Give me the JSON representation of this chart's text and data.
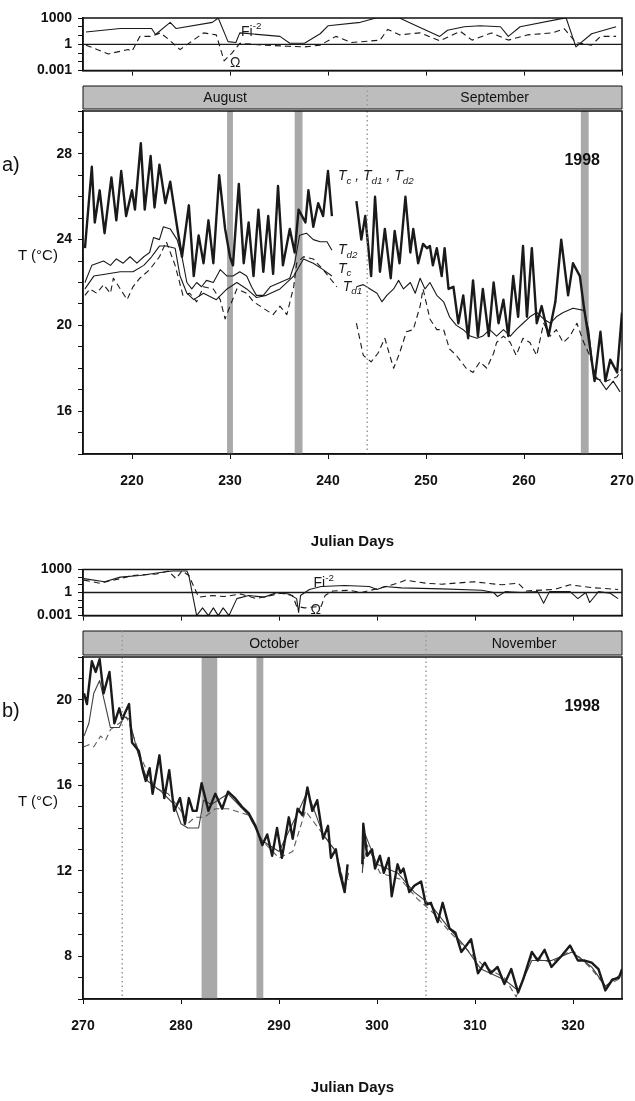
{
  "chart_data": [
    {
      "type": "line",
      "log": true,
      "xlim": [
        215,
        270
      ],
      "ylim": [
        0.001,
        1000
      ],
      "xticks": [
        220,
        230,
        240,
        250,
        260,
        270
      ],
      "yticks": [
        0.001,
        {
          "value": 0.01,
          "label": null
        },
        {
          "value": 0.1,
          "label": null
        },
        1,
        {
          "value": 10,
          "label": null
        },
        {
          "value": 100,
          "label": null
        },
        1000
      ],
      "tick_labels": "y",
      "ref_lines": [
        {
          "axis": "y",
          "value": 1,
          "color": "#1a1a1a"
        }
      ],
      "series": [
        {
          "name": "Fi$^{-2}$",
          "color": "#1a1a1a",
          "x": [
            215.3,
            218.8,
            222.0,
            222.4,
            223.9,
            224.5,
            228.2,
            228.8,
            229.8,
            230.6,
            231.0,
            235.1,
            236.1,
            237.6,
            239.2,
            240.0,
            243.3,
            244.9,
            247.3,
            249.0,
            251.4,
            252.2,
            253.9,
            255.5,
            257.6,
            258.4,
            259.6,
            263.7,
            264.3,
            265.3,
            266.9,
            269.4
          ],
          "values": [
            25,
            63,
            63,
            13,
            320,
            63,
            320,
            1000,
            2,
            1.6,
            20,
            8,
            1.3,
            1.3,
            16,
            130,
            320,
            1000,
            1000,
            130,
            8,
            40,
            100,
            130,
            100,
            8,
            100,
            800,
            1000,
            0.5,
            16,
            100
          ]
        },
        {
          "name": "Ω",
          "color": "#1a1a1a",
          "line_style": "dashed",
          "x": [
            215.3,
            217.6,
            219.6,
            220.0,
            220.8,
            222.0,
            222.9,
            223.7,
            224.9,
            227.3,
            228.6,
            229.4,
            230.2,
            231.0,
            233.5,
            235.9,
            237.6,
            239.2,
            240.8,
            242.4,
            245.3,
            246.1,
            247.3,
            249.4,
            251.4,
            253.5,
            254.7,
            256.7,
            258.4,
            260.4,
            262.9,
            264.1,
            265.3,
            266.9,
            267.8,
            269.4
          ],
          "values": [
            0.8,
            0.08,
            0.25,
            0.16,
            8,
            8,
            20,
            4,
            0.25,
            20,
            12,
            0.013,
            0.1,
            1.3,
            0.8,
            0.6,
            0.5,
            0.8,
            8,
            1.6,
            3,
            50,
            12,
            20,
            2.5,
            30,
            3,
            20,
            3,
            12,
            20,
            60,
            1.6,
            0.8,
            8,
            8
          ]
        }
      ]
    },
    {
      "type": "line",
      "title": "a)",
      "xlabel": "Julian Days",
      "ylabel": "T (°C)",
      "xlim": [
        215,
        270
      ],
      "ylim": [
        14,
        30
      ],
      "xticks": [
        220,
        230,
        240,
        250,
        260,
        270
      ],
      "yticks": [
        {
          "value": 14,
          "label": null
        },
        {
          "value": 15,
          "label": null
        },
        16,
        {
          "value": 17,
          "label": null
        },
        {
          "value": 18,
          "label": null
        },
        {
          "value": 19,
          "label": null
        },
        20,
        {
          "value": 21,
          "label": null
        },
        {
          "value": 22,
          "label": null
        },
        {
          "value": 23,
          "label": null
        },
        24,
        {
          "value": 25,
          "label": null
        },
        {
          "value": 26,
          "label": null
        },
        {
          "value": 27,
          "label": null
        },
        28,
        {
          "value": 29,
          "label": null
        },
        {
          "value": 30,
          "label": null
        }
      ],
      "annotations": [
        "1998",
        "August",
        "September"
      ],
      "ref_lines": [
        {
          "axis": "x",
          "value": 244,
          "color": "#8a8a8a",
          "line_style": "dotted"
        }
      ],
      "bands": [
        {
          "axis": "x",
          "from": 229.7,
          "to": 230.3,
          "color": "#a9a9a9"
        },
        {
          "axis": "x",
          "from": 236.6,
          "to": 237.4,
          "color": "#a9a9a9"
        },
        {
          "axis": "x",
          "from": 265.8,
          "to": 266.6,
          "color": "#a9a9a9"
        }
      ],
      "series": [
        {
          "name": "T$_{c}$ , T$_{d1}$ , T$_{d2}$",
          "color": "#1a1a1a",
          "x": [
            215.2,
            215.9,
            216.2,
            216.7,
            217.2,
            217.9,
            218.4,
            218.9,
            219.4,
            220.0,
            220.3,
            220.9,
            221.3,
            221.9,
            222.3,
            222.8,
            223.4,
            223.9,
            224.6,
            225.1,
            225.8,
            226.3,
            226.8,
            227.3,
            227.8,
            228.3,
            228.9,
            229.5,
            230.0,
            230.3,
            230.9,
            231.4,
            231.9,
            232.4,
            232.9,
            233.4,
            233.9,
            234.4,
            234.9,
            235.4,
            236.1,
            236.6,
            237.0,
            237.7,
            238.0,
            238.5,
            239.0,
            239.5,
            240.0,
            240.4,
            241.5,
            242.9,
            243.4,
            243.8,
            244.4,
            244.8,
            245.3,
            245.8,
            246.4,
            246.8,
            247.3,
            247.9,
            248.4,
            248.7,
            249.2,
            249.7,
            250.1,
            250.4,
            250.7,
            251.1,
            251.6,
            251.9,
            252.3,
            252.8,
            253.3,
            253.8,
            254.3,
            254.8,
            255.3,
            255.8,
            256.4,
            256.9,
            257.4,
            257.9,
            258.4,
            258.9,
            259.4,
            259.9,
            260.3,
            260.8,
            261.3,
            261.8,
            262.5,
            263.2,
            263.8,
            264.5,
            265.0,
            265.7,
            266.1,
            266.6,
            267.2,
            267.8,
            268.3,
            268.8,
            269.5,
            270.0
          ],
          "values": [
            23.6,
            27.4,
            24.8,
            26.3,
            24.3,
            26.9,
            24.9,
            27.2,
            25.1,
            26.3,
            25.4,
            28.5,
            25.4,
            27.9,
            25.5,
            27.5,
            25.7,
            26.7,
            24.6,
            23.2,
            25.6,
            22.3,
            24.2,
            22.9,
            24.9,
            22.9,
            27.0,
            24.5,
            23.2,
            22.8,
            26.6,
            22.9,
            24.8,
            22.3,
            25.4,
            22.5,
            25.1,
            22.4,
            26.5,
            22.8,
            24.5,
            23.4,
            25.4,
            24.8,
            26.3,
            24.6,
            25.7,
            25.1,
            27.2,
            25.1,
            null,
            25.8,
            24.0,
            25.1,
            22.3,
            26.0,
            22.5,
            24.5,
            22.2,
            24.4,
            22.9,
            26.0,
            23.4,
            24.5,
            22.9,
            23.8,
            23.6,
            23.7,
            22.8,
            23.6,
            22.3,
            23.6,
            21.7,
            21.8,
            20.1,
            21.4,
            19.4,
            22.1,
            19.5,
            21.7,
            19.5,
            22.0,
            20.1,
            21.2,
            19.5,
            22.3,
            20.4,
            23.7,
            20.4,
            23.6,
            20.1,
            20.9,
            19.5,
            21.1,
            24.0,
            21.4,
            22.9,
            22.3,
            20.9,
            19.4,
            17.4,
            19.7,
            17.4,
            18.4,
            17.8,
            20.6
          ]
        },
        {
          "name": "T$_{d2}$",
          "color": "#1a1a1a",
          "x": [
            215.2,
            215.9,
            217.1,
            217.8,
            218.4,
            219.1,
            219.8,
            220.5,
            221.2,
            221.8,
            222.2,
            222.8,
            223.2,
            223.9,
            224.6,
            225.1,
            225.6,
            226.1,
            226.6,
            227.1,
            227.6,
            228.3,
            229.0,
            229.7,
            230.3,
            231.0,
            231.7,
            232.2,
            232.7,
            233.4,
            234.1,
            235.1,
            236.1,
            236.6,
            237.1,
            237.8,
            238.5,
            239.2,
            239.9,
            240.4
          ],
          "values": [
            22.0,
            22.8,
            23.0,
            22.8,
            23.1,
            22.9,
            23.2,
            22.9,
            23.2,
            23.4,
            24.1,
            24.0,
            24.6,
            24.5,
            24.0,
            23.2,
            22.0,
            21.7,
            22.0,
            21.8,
            22.1,
            22.0,
            22.6,
            22.3,
            22.3,
            22.5,
            22.3,
            21.8,
            21.4,
            21.4,
            21.8,
            22.0,
            22.2,
            22.9,
            24.2,
            24.3,
            24.0,
            23.9,
            23.9,
            23.5
          ]
        },
        {
          "name": "T$_{c}$",
          "color": "#1a1a1a",
          "x": [
            215.2,
            216.1,
            217.4,
            218.8,
            220.1,
            221.2,
            222.0,
            222.8,
            223.5,
            224.4,
            224.9,
            225.6,
            226.3,
            227.3,
            228.6,
            229.7,
            230.7,
            231.7,
            232.7,
            233.7,
            235.1,
            236.5,
            237.5,
            238.5,
            239.5,
            240.4,
            241.5,
            242.9,
            243.6,
            244.3,
            245.0,
            245.5,
            246.0,
            246.7,
            247.2,
            247.7,
            248.4,
            248.9,
            249.4,
            249.9,
            250.4,
            251.1,
            251.8,
            252.4,
            253.1,
            253.8,
            254.5,
            255.2,
            255.8,
            256.5,
            257.2,
            257.9,
            258.6,
            259.2,
            259.9,
            260.6,
            261.3,
            262.0,
            262.7,
            263.3,
            264.0,
            265.0,
            266.1,
            266.6,
            267.1,
            267.8,
            268.4,
            269.1,
            269.8
          ],
          "values": [
            21.7,
            22.3,
            22.4,
            22.5,
            22.5,
            22.8,
            23.2,
            23.7,
            23.7,
            23.6,
            22.3,
            21.5,
            21.2,
            21.5,
            21.2,
            21.7,
            22.0,
            21.7,
            21.3,
            21.4,
            21.7,
            22.3,
            23.1,
            22.9,
            22.6,
            22.3,
            null,
            21.8,
            21.9,
            21.7,
            21.5,
            21.1,
            21.4,
            21.7,
            22.1,
            21.7,
            22.0,
            21.5,
            22.2,
            21.7,
            22.0,
            21.4,
            21.1,
            20.4,
            20.0,
            19.8,
            19.5,
            19.4,
            19.5,
            19.8,
            19.5,
            19.8,
            19.5,
            19.8,
            20.1,
            20.4,
            20.6,
            20.3,
            20.1,
            20.4,
            20.6,
            20.8,
            20.7,
            19.8,
            17.7,
            17.4,
            17.0,
            17.4,
            16.9
          ]
        },
        {
          "name": "T$_{d1}$",
          "color": "#1a1a1a",
          "line_style": "dashed",
          "x": [
            215.2,
            215.7,
            216.4,
            217.1,
            217.8,
            218.1,
            218.8,
            219.5,
            220.1,
            220.8,
            221.8,
            222.8,
            223.5,
            224.4,
            225.2,
            225.9,
            226.6,
            227.3,
            228.3,
            229.0,
            229.5,
            230.0,
            230.7,
            231.7,
            232.4,
            233.4,
            234.4,
            235.1,
            235.8,
            236.5,
            236.8,
            237.5,
            238.5,
            239.5,
            240.2,
            240.9,
            242.0,
            242.9,
            243.6,
            244.4,
            245.1,
            245.8,
            246.3,
            246.7,
            247.3,
            248.0,
            248.7,
            249.4,
            249.7,
            250.4,
            251.1,
            251.8,
            252.4,
            253.1,
            254.1,
            254.8,
            255.5,
            256.2,
            256.9,
            257.2,
            257.9,
            258.6,
            259.2,
            259.9,
            260.6,
            261.3,
            262.0,
            262.7,
            263.3,
            264.0,
            264.7,
            265.4,
            266.1,
            266.7,
            267.4,
            268.4,
            269.5,
            270.0
          ],
          "values": [
            21.4,
            21.7,
            21.5,
            21.9,
            21.5,
            22.2,
            21.7,
            21.2,
            21.8,
            22.2,
            22.6,
            23.2,
            23.9,
            22.8,
            21.4,
            21.5,
            21.1,
            21.8,
            21.7,
            21.2,
            20.3,
            20.9,
            21.7,
            21.5,
            21.1,
            20.8,
            20.5,
            20.9,
            20.5,
            21.8,
            22.9,
            23.2,
            23.1,
            22.6,
            22.2,
            21.8,
            null,
            20.1,
            18.6,
            18.3,
            18.7,
            19.4,
            18.6,
            18.0,
            18.7,
            19.7,
            19.8,
            20.9,
            21.7,
            20.3,
            19.8,
            19.8,
            18.9,
            18.6,
            18.0,
            17.8,
            18.3,
            18.0,
            18.7,
            19.2,
            19.5,
            19.2,
            18.6,
            19.4,
            19.2,
            18.6,
            20.1,
            19.5,
            19.8,
            19.2,
            19.5,
            20.1,
            19.2,
            18.6,
            17.5,
            17.4,
            17.6,
            18.0
          ]
        }
      ]
    },
    {
      "type": "line",
      "log": true,
      "xlim": [
        270,
        325
      ],
      "ylim": [
        0.001,
        1000
      ],
      "xticks": [
        270,
        280,
        290,
        300,
        310,
        320
      ],
      "yticks": [
        0.001,
        {
          "value": 0.01,
          "label": null
        },
        {
          "value": 0.1,
          "label": null
        },
        1,
        {
          "value": 10,
          "label": null
        },
        {
          "value": 100,
          "label": null
        },
        1000
      ],
      "tick_labels": "y",
      "ref_lines": [
        {
          "axis": "y",
          "value": 1,
          "color": "#1a1a1a"
        }
      ],
      "series": [
        {
          "name": "Fi$^{-2}$",
          "color": "#1a1a1a",
          "x": [
            270.1,
            272.2,
            273.8,
            275.8,
            277.9,
            279.1,
            280.6,
            280.8,
            281.6,
            282.2,
            282.8,
            283.3,
            283.8,
            284.3,
            284.9,
            285.7,
            286.9,
            288.5,
            289.8,
            291.0,
            291.8,
            292.0,
            292.2,
            293.1,
            294.3,
            296.7,
            299.2,
            300.0,
            300.8,
            302.5,
            306.6,
            310.7,
            311.9,
            312.3,
            313.1,
            314.8,
            316.4,
            317.0,
            317.6,
            319.7,
            320.5,
            321.3,
            321.7,
            322.6,
            323.8,
            324.6
          ],
          "values": [
            63,
            25,
            100,
            160,
            400,
            630,
            630,
            160,
            0.001,
            0.01,
            0.001,
            0.01,
            0.001,
            0.01,
            0.001,
            0.16,
            0.4,
            0.25,
            1,
            0.63,
            0.16,
            0.0025,
            0.4,
            2.5,
            6,
            8,
            6,
            2.5,
            6,
            4,
            3,
            2,
            1,
            0.3,
            1.3,
            1,
            1.3,
            0.04,
            1.3,
            1.3,
            0.16,
            1,
            0.05,
            1.3,
            0.8,
            0.16
          ]
        },
        {
          "name": "Ω",
          "color": "#1a1a1a",
          "line_style": "dashed",
          "x": [
            270.1,
            271.7,
            273.8,
            275.0,
            277.5,
            278.7,
            279.5,
            280.1,
            280.8,
            281.8,
            283.2,
            284.4,
            286.1,
            287.7,
            290.2,
            291.4,
            291.8,
            292.6,
            294.3,
            294.7,
            295.5,
            297.2,
            298.4,
            300.4,
            302.1,
            302.9,
            305.0,
            306.6,
            309.9,
            312.7,
            314.4,
            315.2,
            318.1,
            319.7,
            322.2,
            324.6
          ],
          "values": [
            40,
            16,
            63,
            160,
            250,
            630,
            63,
            630,
            160,
            0.25,
            0.4,
            0.3,
            0.63,
            0.16,
            0.8,
            0.4,
            0.016,
            0.01,
            0.016,
            0.4,
            1.6,
            1.9,
            1,
            4,
            16,
            40,
            16,
            12,
            25,
            10,
            16,
            1.6,
            2.5,
            10,
            4,
            2.5
          ]
        }
      ]
    },
    {
      "type": "line",
      "title": "b)",
      "xlabel": "Julian Days",
      "ylabel": "T (°C)",
      "xlim": [
        270,
        325
      ],
      "ylim": [
        6,
        22
      ],
      "xticks": [
        270,
        280,
        290,
        300,
        310,
        320
      ],
      "yticks": [
        {
          "value": 6,
          "label": null
        },
        {
          "value": 7,
          "label": null
        },
        8,
        {
          "value": 9,
          "label": null
        },
        {
          "value": 10,
          "label": null
        },
        {
          "value": 11,
          "label": null
        },
        12,
        {
          "value": 13,
          "label": null
        },
        {
          "value": 14,
          "label": null
        },
        {
          "value": 15,
          "label": null
        },
        16,
        {
          "value": 17,
          "label": null
        },
        {
          "value": 18,
          "label": null
        },
        {
          "value": 19,
          "label": null
        },
        20,
        {
          "value": 21,
          "label": null
        },
        {
          "value": 22,
          "label": null
        }
      ],
      "annotations": [
        "1998",
        "October",
        "November"
      ],
      "ref_lines": [
        {
          "axis": "x",
          "value": 274,
          "color": "#8a8a8a",
          "line_style": "dotted"
        },
        {
          "axis": "x",
          "value": 305,
          "color": "#8a8a8a",
          "line_style": "dotted"
        }
      ],
      "bands": [
        {
          "axis": "x",
          "from": 282.1,
          "to": 283.7,
          "color": "#a9a9a9"
        },
        {
          "axis": "x",
          "from": 287.7,
          "to": 288.4,
          "color": "#a9a9a9"
        }
      ],
      "series": [
        {
          "color": "#1a1a1a",
          "x": [
            270.1,
            270.4,
            270.9,
            271.3,
            271.7,
            272.1,
            272.7,
            273.2,
            273.7,
            274.0,
            274.7,
            275.0,
            275.7,
            276.1,
            276.4,
            276.8,
            277.1,
            277.8,
            278.3,
            278.8,
            279.3,
            279.9,
            280.4,
            280.8,
            281.2,
            281.6,
            282.1,
            282.8,
            283.5,
            284.2,
            284.8,
            285.5,
            286.2,
            286.9,
            287.6,
            288.3,
            288.8,
            289.3,
            289.8,
            290.3,
            291.0,
            291.4,
            291.9,
            292.4,
            292.9,
            293.4,
            293.9,
            294.5,
            295.0,
            295.3,
            295.8,
            296.2,
            296.7,
            297.0,
            297.8,
            298.5,
            298.6,
            299.0,
            299.5,
            299.8,
            300.3,
            300.7,
            301.2,
            301.5,
            302.1,
            302.4,
            302.7,
            303.3,
            303.8,
            304.5,
            305.0,
            305.5,
            306.2,
            306.7,
            307.4,
            308.0,
            308.6,
            309.6,
            310.3,
            311.0,
            311.6,
            312.3,
            313.0,
            313.7,
            314.4,
            314.9,
            315.8,
            316.4,
            317.1,
            317.8,
            318.8,
            319.7,
            320.5,
            321.2,
            321.9,
            322.6,
            323.3,
            324.0,
            324.7,
            325.0
          ],
          "values": [
            20.3,
            19.8,
            21.8,
            21.3,
            21.9,
            20.3,
            21.3,
            18.9,
            19.6,
            19.1,
            19.8,
            18.0,
            17.6,
            16.7,
            16.2,
            16.8,
            15.6,
            17.4,
            15.4,
            16.7,
            14.8,
            15.4,
            14.2,
            15.4,
            14.8,
            14.8,
            16.1,
            14.8,
            15.6,
            14.9,
            15.7,
            15.4,
            15.0,
            14.7,
            14.1,
            13.2,
            13.7,
            12.7,
            14.0,
            12.6,
            14.5,
            13.5,
            14.9,
            14.6,
            15.9,
            14.8,
            15.3,
            13.5,
            14.1,
            12.6,
            13.0,
            11.9,
            11.0,
            12.3,
            null,
            12.3,
            14.2,
            12.7,
            13.0,
            12.1,
            12.7,
            11.9,
            12.6,
            10.8,
            12.3,
            11.9,
            12.1,
            11.0,
            11.3,
            11.5,
            10.4,
            10.5,
            9.6,
            10.5,
            9.3,
            9.1,
            8.2,
            8.8,
            7.2,
            7.7,
            7.2,
            7.5,
            6.7,
            7.4,
            6.3,
            6.9,
            8.2,
            7.8,
            8.3,
            7.5,
            8.0,
            8.5,
            7.8,
            7.8,
            7.7,
            7.4,
            6.4,
            6.9,
            7.0,
            7.4
          ]
        },
        {
          "color": "#404040",
          "x": [
            270.1,
            270.6,
            271.1,
            271.7,
            272.3,
            272.8,
            273.7,
            274.2,
            274.7,
            275.6,
            276.6,
            278.0,
            279.3,
            280.0,
            280.7,
            281.8,
            282.3,
            283.1,
            284.8,
            286.9,
            288.3,
            290.0,
            291.7,
            292.9,
            294.5,
            295.8,
            296.7,
            297.1,
            297.8,
            298.5,
            298.8,
            300.0,
            302.1,
            303.8,
            305.5,
            307.2,
            308.9,
            310.6,
            313.0,
            314.4,
            315.8,
            317.8,
            319.9,
            321.9,
            323.3,
            325.0
          ],
          "values": [
            18.3,
            18.9,
            20.3,
            20.9,
            19.7,
            18.7,
            18.7,
            19.2,
            19.1,
            17.5,
            16.2,
            15.7,
            15.1,
            14.2,
            14.0,
            14.0,
            15.3,
            15.1,
            15.6,
            14.6,
            13.4,
            12.9,
            14.5,
            15.7,
            13.7,
            12.9,
            11.2,
            11.9,
            null,
            11.9,
            13.7,
            12.3,
            11.9,
            11.0,
            10.4,
            9.4,
            8.5,
            7.4,
            6.9,
            6.4,
            7.8,
            7.8,
            8.2,
            7.5,
            6.6,
            7.2
          ]
        },
        {
          "color": "#5c5c5c",
          "line_style": "dashed",
          "x": [
            270.1,
            270.6,
            271.1,
            271.8,
            272.3,
            272.8,
            273.7,
            274.4,
            274.7,
            275.9,
            277.3,
            278.7,
            280.0,
            280.7,
            281.4,
            282.4,
            283.5,
            284.8,
            286.9,
            288.3,
            290.0,
            291.4,
            292.7,
            294.5,
            295.8,
            296.7,
            297.1,
            297.8,
            298.5,
            299.0,
            300.3,
            302.4,
            304.1,
            305.8,
            307.5,
            309.2,
            311.0,
            313.0,
            314.2,
            315.8,
            317.8,
            319.9,
            321.9,
            323.3,
            325.0
          ],
          "values": [
            17.8,
            17.9,
            17.8,
            18.3,
            18.1,
            18.6,
            18.9,
            19.2,
            18.9,
            17.3,
            15.9,
            15.6,
            14.8,
            14.2,
            14.5,
            14.5,
            14.9,
            14.9,
            14.6,
            13.4,
            12.6,
            12.9,
            14.8,
            13.7,
            12.9,
            11.3,
            11.6,
            null,
            12.1,
            13.2,
            11.9,
            11.6,
            10.7,
            10.0,
            9.1,
            8.3,
            7.5,
            7.0,
            6.1,
            8.0,
            7.7,
            8.3,
            7.4,
            6.6,
            7.0
          ]
        }
      ]
    }
  ]
}
